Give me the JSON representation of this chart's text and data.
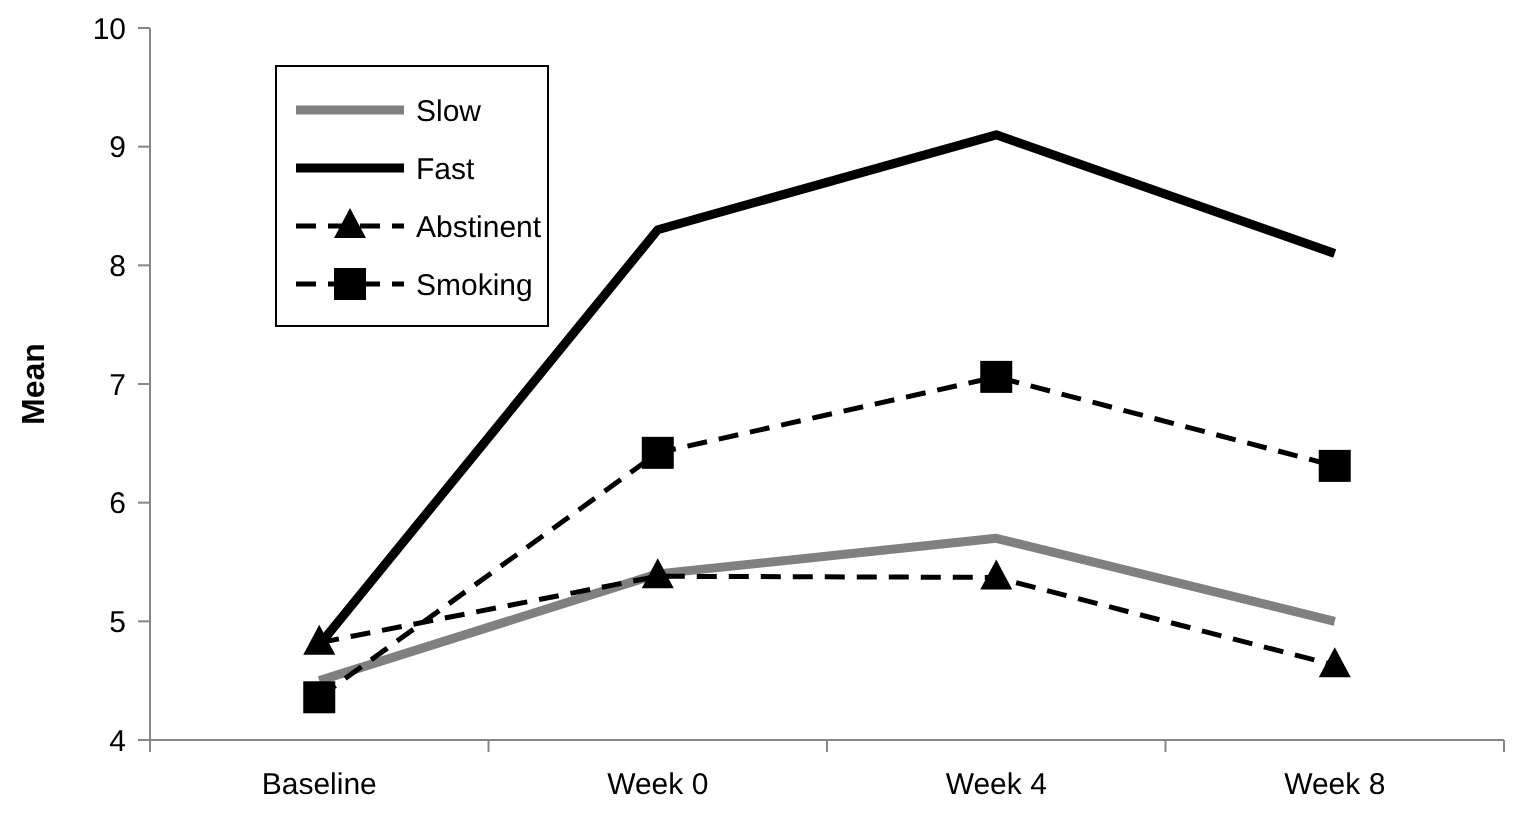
{
  "chart_data": {
    "type": "line",
    "ylabel": "Mean",
    "categories": [
      "Baseline",
      "Week 0",
      "Week 4",
      "Week 8"
    ],
    "ylim": [
      4,
      10
    ],
    "yticks": [
      4,
      5,
      6,
      7,
      8,
      9,
      10
    ],
    "grid": false,
    "legend": "top left",
    "series": [
      {
        "name": "Slow",
        "color": "#808080",
        "values": [
          4.5,
          5.4,
          5.7,
          5.0
        ],
        "line_style": "solid",
        "marker": "none"
      },
      {
        "name": "Fast",
        "color": "#000000",
        "values": [
          4.8,
          8.3,
          9.1,
          8.1
        ],
        "line_style": "solid",
        "marker": "none"
      },
      {
        "name": "Abstinent",
        "color": "#000000",
        "values": [
          4.82,
          5.38,
          5.37,
          4.63
        ],
        "line_style": "dashed",
        "marker": "triangle"
      },
      {
        "name": "Smoking",
        "color": "#000000",
        "values": [
          4.36,
          6.42,
          7.06,
          6.31
        ],
        "line_style": "dashed",
        "marker": "square"
      }
    ]
  }
}
